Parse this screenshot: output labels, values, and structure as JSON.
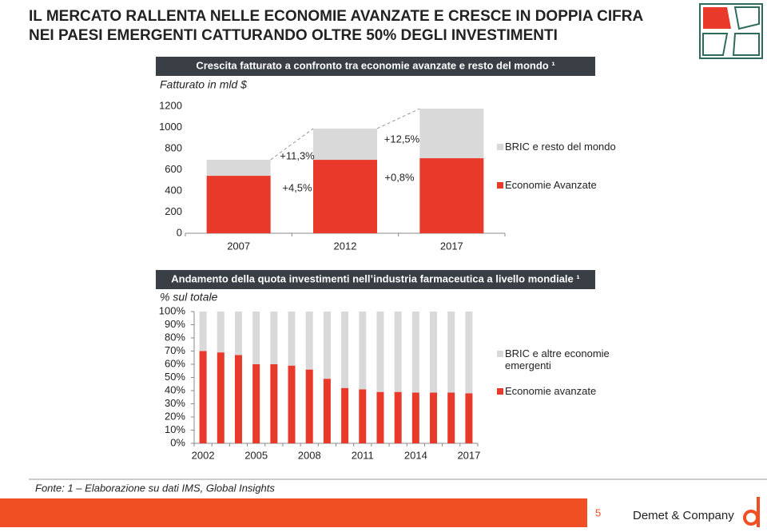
{
  "header": {
    "title_lines": [
      "IL MERCATO RALLENTA NELLE ECONOMIE AVANZATE E CRESCE IN DOPPIA CIFRA",
      "NEI PAESI EMERGENTI CATTURANDO OLTRE 50% DEGLI INVESTIMENTI"
    ]
  },
  "chart_data": [
    {
      "type": "stacked-bar",
      "title": "Crescita fatturato a confronto tra economie avanzate e resto del mondo ¹",
      "y_label": "Fatturato in mld $",
      "categories": [
        "2007",
        "2012",
        "2017"
      ],
      "series": [
        {
          "name": "Economie Avanzate",
          "color": "#e8392b",
          "values": [
            543,
            694,
            709
          ]
        },
        {
          "name": "BRIC e resto del mondo",
          "color": "#d9d9d9",
          "values": [
            151,
            295,
            468
          ]
        }
      ],
      "ylim": [
        0,
        1200
      ],
      "yticks": [
        0,
        200,
        400,
        600,
        800,
        1000,
        1200
      ],
      "annotations": [
        "+11,3%",
        "+4,5%",
        "+12,5%",
        "+0,8%"
      ]
    },
    {
      "type": "stacked-bar",
      "title": "Andamento della quota investimenti nell’industria farmaceutica a livello mondiale ¹",
      "y_label": "% sul totale",
      "categories": [
        "2002",
        null,
        null,
        "2005",
        null,
        null,
        "2008",
        null,
        null,
        "2011",
        null,
        null,
        "2014",
        null,
        null,
        "2017"
      ],
      "series": [
        {
          "name": "Economie avanzate",
          "color": "#e8392b",
          "values": [
            70,
            69,
            67,
            60,
            60,
            59,
            56,
            49,
            42,
            41,
            39,
            39,
            38.5,
            38.5,
            38.5,
            38
          ]
        },
        {
          "name": "BRIC e altre economie emergenti",
          "color": "#d9d9d9",
          "values": [
            30,
            31,
            33,
            40,
            40,
            41,
            44,
            51,
            58,
            59,
            61,
            61,
            61.5,
            61.5,
            61.5,
            62
          ]
        }
      ],
      "ylim": [
        0,
        100
      ],
      "yticks": [
        {
          "value": 0,
          "label": "0%"
        },
        {
          "value": 10,
          "label": "10%"
        },
        {
          "value": 20,
          "label": "20%"
        },
        {
          "value": 30,
          "label": "30%"
        },
        {
          "value": 40,
          "label": "40%"
        },
        {
          "value": 50,
          "label": "50%"
        },
        {
          "value": 60,
          "label": "60%"
        },
        {
          "value": 70,
          "label": "70%"
        },
        {
          "value": 80,
          "label": "80%"
        },
        {
          "value": 90,
          "label": "90%"
        },
        {
          "value": 100,
          "label": "100%"
        }
      ]
    }
  ],
  "footer": {
    "source": "Fonte: 1 – Elaborazione su dati IMS, Global Insights",
    "page": "5",
    "company": "Demet & Company"
  }
}
